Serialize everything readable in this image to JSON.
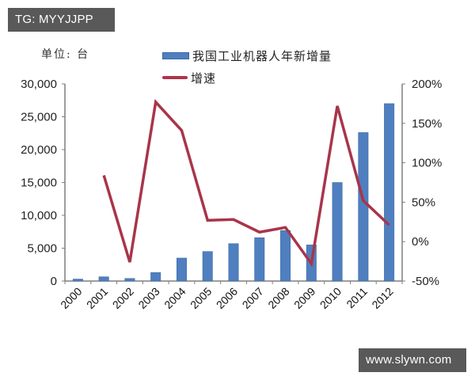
{
  "watermarks": {
    "top_left": "TG: MYYJJPP",
    "bottom_right": "www.slywn.com"
  },
  "unit_label": "单位: 台",
  "legend": {
    "bar_label": "我国工业机器人年新增量",
    "line_label": "增速"
  },
  "colors": {
    "bar": "#4f7fbf",
    "bar_border": "#3a65a0",
    "line": "#a8354a",
    "axis": "#7f7f7f"
  },
  "chart_data": {
    "type": "bar+line",
    "title": "",
    "unit": "台",
    "categories": [
      "2000",
      "2001",
      "2002",
      "2003",
      "2004",
      "2005",
      "2006",
      "2007",
      "2008",
      "2009",
      "2010",
      "2011",
      "2012"
    ],
    "series": [
      {
        "name": "我国工业机器人年新增量",
        "type": "bar",
        "axis": "left",
        "values": [
          300,
          650,
          400,
          1300,
          3500,
          4500,
          5700,
          6600,
          7700,
          5500,
          15000,
          22600,
          27000
        ]
      },
      {
        "name": "增速",
        "type": "line",
        "axis": "right",
        "unit": "%",
        "values": [
          null,
          84,
          -26,
          177,
          141,
          27,
          28,
          12,
          18,
          -28,
          172,
          52,
          21
        ]
      }
    ],
    "left_axis": {
      "ylim": [
        0,
        30000
      ],
      "ticks": [
        "0",
        "5,000",
        "10,000",
        "15,000",
        "20,000",
        "25,000",
        "30,000"
      ]
    },
    "right_axis": {
      "ylim": [
        -50,
        200
      ],
      "ticks": [
        "-50%",
        "0%",
        "50%",
        "100%",
        "150%",
        "200%"
      ]
    },
    "xlabel": "",
    "ylabel": "",
    "grid": false,
    "legend_position": "top"
  }
}
